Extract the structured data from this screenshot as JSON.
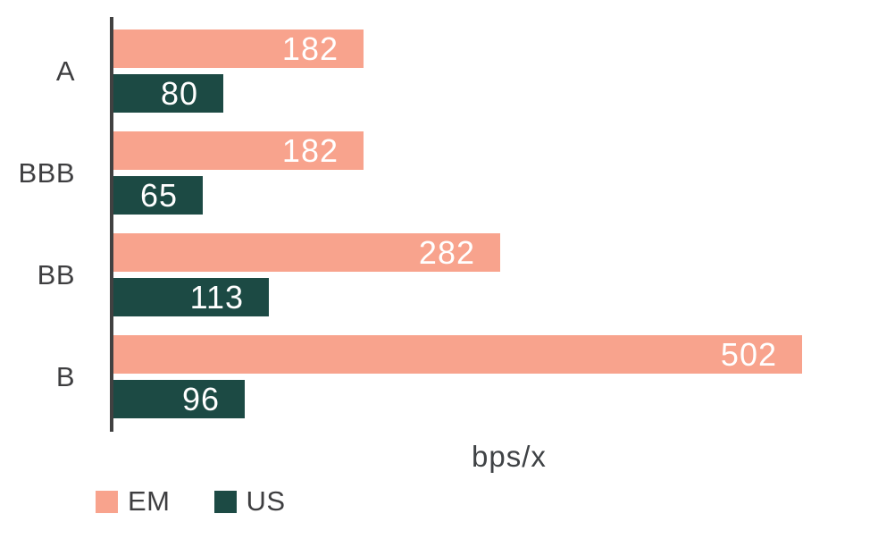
{
  "chart_data": {
    "type": "bar",
    "orientation": "horizontal",
    "title": "",
    "xlabel": "bps/x",
    "ylabel": "",
    "categories": [
      "A",
      "BBB",
      "BB",
      "B"
    ],
    "series": [
      {
        "name": "EM",
        "color": "#F8A38D",
        "values": [
          182,
          182,
          282,
          502
        ]
      },
      {
        "name": "US",
        "color": "#1C4A44",
        "values": [
          80,
          65,
          113,
          96
        ]
      }
    ],
    "xlim": [
      0,
      560
    ],
    "grid": false,
    "legend_position": "bottom-left",
    "value_labels": "inside-right-white"
  },
  "colors": {
    "em_bar": "#F8A38D",
    "us_bar": "#1C4A44",
    "axis_line": "#414141",
    "category_text": "#3E3E40",
    "value_text": "#FFFFFF",
    "background": "#FFFFFF"
  }
}
